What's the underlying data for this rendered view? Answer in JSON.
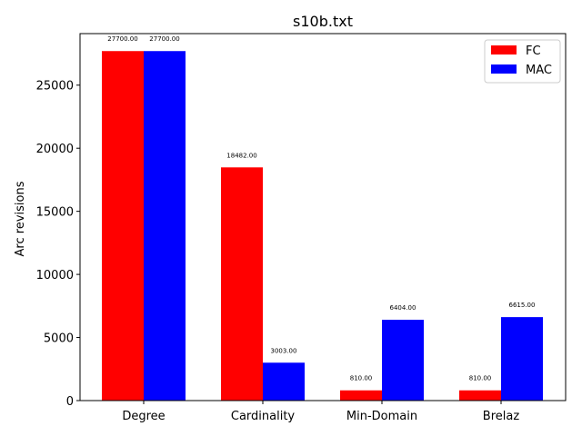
{
  "chart_data": {
    "type": "bar",
    "title": "s10b.txt",
    "xlabel": "",
    "ylabel": "Arc revisions",
    "categories": [
      "Degree",
      "Cardinality",
      "Min-Domain",
      "Brelaz"
    ],
    "series": [
      {
        "name": "FC",
        "color": "#ff0000",
        "values": [
          27700,
          18482,
          810,
          810
        ],
        "labels": [
          "27700.00",
          "18482.00",
          "810.00",
          "810.00"
        ]
      },
      {
        "name": "MAC",
        "color": "#0000ff",
        "values": [
          27700,
          3003,
          6404,
          6615
        ],
        "labels": [
          "27700.00",
          "3003.00",
          "6404.00",
          "6615.00"
        ]
      }
    ],
    "ylim": [
      0,
      29085
    ],
    "yticks": [
      0,
      5000,
      10000,
      15000,
      20000,
      25000
    ],
    "ytick_labels": [
      "0",
      "5000",
      "10000",
      "15000",
      "20000",
      "25000"
    ],
    "legend_position": "upper right",
    "grid": false
  }
}
